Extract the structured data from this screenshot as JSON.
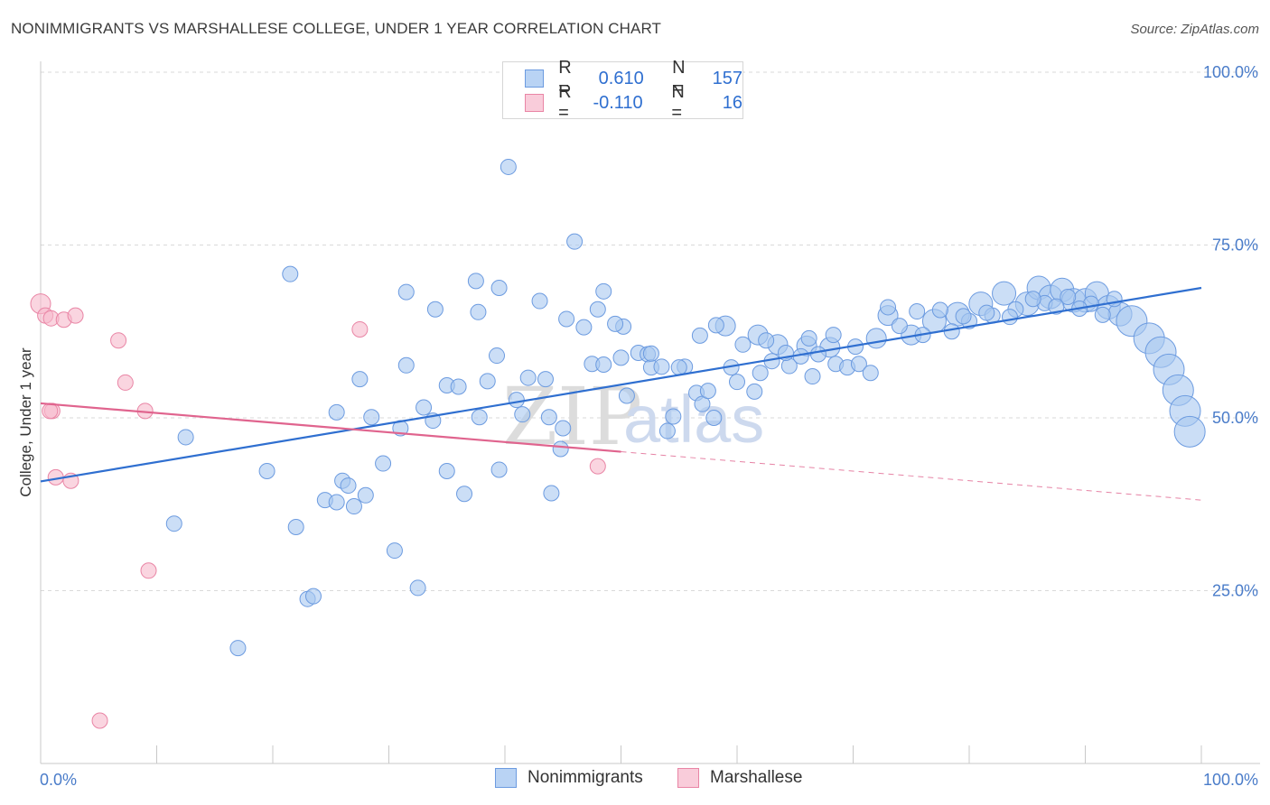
{
  "title": "NONIMMIGRANTS VS MARSHALLESE COLLEGE, UNDER 1 YEAR CORRELATION CHART",
  "source": "Source: ZipAtlas.com",
  "watermark": {
    "zip": "ZIP",
    "atlas": "atlas"
  },
  "colors": {
    "blue_fill": "#a9c8f0",
    "blue_stroke": "#6c9be0",
    "blue_line": "#2f6fd0",
    "pink_fill": "#f7b9cc",
    "pink_stroke": "#e985a5",
    "pink_line": "#e0648e",
    "grid": "#d9d9d9",
    "tick_text": "#4a7cc9"
  },
  "legend_top": {
    "rows": [
      {
        "r_label": "R =",
        "r_value": "0.610",
        "n_label": "N =",
        "n_value": "157"
      },
      {
        "r_label": "R =",
        "r_value": "-0.110",
        "n_label": "N =",
        "n_value": "16"
      }
    ]
  },
  "legend_bottom": {
    "items": [
      "Nonimmigrants",
      "Marshallese"
    ]
  },
  "chart_data": {
    "type": "scatter",
    "title": "NONIMMIGRANTS VS MARSHALLESE COLLEGE, UNDER 1 YEAR CORRELATION CHART",
    "xlabel": "",
    "ylabel": "College, Under 1 year",
    "xlim": [
      0,
      100
    ],
    "ylim": [
      0,
      100
    ],
    "x_tick_labels": [
      "0.0%",
      "100.0%"
    ],
    "y_tick_labels": [
      "25.0%",
      "50.0%",
      "75.0%",
      "100.0%"
    ],
    "y_ticks": [
      25,
      50,
      75,
      100
    ],
    "grid": true,
    "legend_placement": "top-center",
    "series": [
      {
        "name": "Nonimmigrants",
        "r": 0.61,
        "n": 157,
        "trend": {
          "x": [
            0,
            100
          ],
          "y": [
            40.8,
            68.8
          ]
        },
        "points": [
          [
            40.3,
            86.3,
            1
          ],
          [
            46.0,
            75.5,
            1
          ],
          [
            21.5,
            70.8,
            1
          ],
          [
            31.5,
            68.2,
            1
          ],
          [
            37.5,
            69.8,
            1
          ],
          [
            39.5,
            68.8,
            1
          ],
          [
            43.0,
            66.9,
            1
          ],
          [
            48.5,
            68.3,
            1
          ],
          [
            34.0,
            65.7,
            1
          ],
          [
            37.7,
            65.3,
            1
          ],
          [
            45.3,
            64.3,
            1
          ],
          [
            46.8,
            63.1,
            1
          ],
          [
            48.0,
            65.7,
            1
          ],
          [
            50.2,
            63.2,
            1
          ],
          [
            59.0,
            63.3,
            2
          ],
          [
            61.8,
            62.0,
            2
          ],
          [
            63.5,
            60.6,
            2
          ],
          [
            66.0,
            60.4,
            2
          ],
          [
            68.0,
            60.2,
            2
          ],
          [
            72.0,
            61.5,
            2
          ],
          [
            73.0,
            64.8,
            2
          ],
          [
            75.0,
            62.0,
            2
          ],
          [
            77.0,
            64.0,
            3
          ],
          [
            79.0,
            65.0,
            3
          ],
          [
            81.0,
            66.5,
            3
          ],
          [
            83.0,
            68.0,
            3
          ],
          [
            85.0,
            66.5,
            3
          ],
          [
            86.0,
            68.8,
            3
          ],
          [
            87.0,
            67.5,
            3
          ],
          [
            88.0,
            68.5,
            3
          ],
          [
            89.0,
            67.0,
            3
          ],
          [
            90.0,
            67.0,
            3
          ],
          [
            91.0,
            68.0,
            3
          ],
          [
            92.0,
            66.0,
            3
          ],
          [
            93.0,
            65.0,
            3
          ],
          [
            94.0,
            64.0,
            4
          ],
          [
            95.5,
            61.5,
            4
          ],
          [
            96.5,
            59.5,
            4
          ],
          [
            97.2,
            57.0,
            4
          ],
          [
            98.0,
            54.0,
            4
          ],
          [
            98.6,
            51.0,
            4
          ],
          [
            99.0,
            48.0,
            4
          ],
          [
            12.5,
            47.2,
            1
          ],
          [
            19.5,
            42.3,
            1
          ],
          [
            11.5,
            34.7,
            1
          ],
          [
            22.0,
            34.2,
            1
          ],
          [
            17.0,
            16.7,
            1
          ],
          [
            23.0,
            23.8,
            1
          ],
          [
            23.5,
            24.2,
            1
          ],
          [
            30.5,
            30.8,
            1
          ],
          [
            32.5,
            25.4,
            1
          ],
          [
            24.5,
            38.1,
            1
          ],
          [
            25.5,
            37.8,
            1
          ],
          [
            26.0,
            40.9,
            1
          ],
          [
            26.5,
            40.2,
            1
          ],
          [
            27.0,
            37.2,
            1
          ],
          [
            28.0,
            38.8,
            1
          ],
          [
            29.5,
            43.4,
            1
          ],
          [
            35.0,
            42.3,
            1
          ],
          [
            36.5,
            39.0,
            1
          ],
          [
            39.5,
            42.5,
            1
          ],
          [
            44.0,
            39.1,
            1
          ],
          [
            44.8,
            45.5,
            1
          ],
          [
            25.5,
            50.8,
            1
          ],
          [
            27.5,
            55.6,
            1
          ],
          [
            28.5,
            50.1,
            1
          ],
          [
            31.0,
            48.5,
            1
          ],
          [
            31.5,
            57.6,
            1
          ],
          [
            33.0,
            51.5,
            1
          ],
          [
            33.8,
            49.6,
            1
          ],
          [
            35.0,
            54.7,
            1
          ],
          [
            36.0,
            54.5,
            1
          ],
          [
            37.8,
            50.1,
            1
          ],
          [
            38.5,
            55.3,
            1
          ],
          [
            39.3,
            59.0,
            1
          ],
          [
            41.0,
            52.6,
            1
          ],
          [
            41.5,
            50.5,
            1
          ],
          [
            42.0,
            55.8,
            1
          ],
          [
            43.5,
            55.6,
            1
          ],
          [
            43.8,
            50.1,
            1
          ],
          [
            45.0,
            48.5,
            1
          ],
          [
            47.5,
            57.8,
            1
          ],
          [
            48.5,
            57.7,
            1
          ],
          [
            50.0,
            58.7,
            1
          ],
          [
            50.5,
            53.2,
            1
          ],
          [
            51.5,
            59.4,
            1
          ],
          [
            52.3,
            59.2,
            1
          ],
          [
            52.6,
            57.3,
            1
          ],
          [
            53.5,
            57.4,
            1
          ],
          [
            54.0,
            48.1,
            1
          ],
          [
            54.5,
            50.2,
            1
          ],
          [
            55.5,
            57.4,
            1
          ],
          [
            56.5,
            53.6,
            1
          ],
          [
            57.0,
            52.0,
            1
          ],
          [
            57.5,
            53.9,
            1
          ],
          [
            58.0,
            50.0,
            1
          ],
          [
            59.5,
            57.3,
            1
          ],
          [
            60.0,
            55.2,
            1
          ],
          [
            61.5,
            53.8,
            1
          ],
          [
            62.0,
            56.5,
            1
          ],
          [
            63.0,
            58.2,
            1
          ],
          [
            64.5,
            57.5,
            1
          ],
          [
            65.5,
            58.9,
            1
          ],
          [
            66.5,
            56.0,
            1
          ],
          [
            67.0,
            59.2,
            1
          ],
          [
            68.5,
            57.8,
            1
          ],
          [
            69.5,
            57.3,
            1
          ],
          [
            70.5,
            57.8,
            1
          ],
          [
            71.5,
            56.5,
            1
          ],
          [
            49.5,
            63.6,
            1
          ],
          [
            55.0,
            57.3,
            1
          ],
          [
            52.6,
            59.3,
            1
          ],
          [
            56.8,
            61.9,
            1
          ],
          [
            58.2,
            63.4,
            1
          ],
          [
            60.5,
            60.6,
            1
          ],
          [
            62.5,
            61.2,
            1
          ],
          [
            64.2,
            59.4,
            1
          ],
          [
            66.2,
            61.5,
            1
          ],
          [
            68.3,
            62.0,
            1
          ],
          [
            70.2,
            60.3,
            1
          ],
          [
            74.0,
            63.3,
            1
          ],
          [
            76.0,
            62.0,
            1
          ],
          [
            78.5,
            62.5,
            1
          ],
          [
            80.0,
            64.0,
            1
          ],
          [
            82.0,
            64.8,
            1
          ],
          [
            84.0,
            65.7,
            1
          ],
          [
            86.5,
            66.6,
            1
          ],
          [
            88.5,
            67.5,
            1
          ],
          [
            90.5,
            66.5,
            1
          ],
          [
            92.5,
            67.2,
            1
          ],
          [
            73.0,
            66.0,
            1
          ],
          [
            75.5,
            65.4,
            1
          ],
          [
            77.5,
            65.6,
            1
          ],
          [
            79.5,
            64.7,
            1
          ],
          [
            81.5,
            65.2,
            1
          ],
          [
            83.5,
            64.6,
            1
          ],
          [
            85.5,
            67.2,
            1
          ],
          [
            87.5,
            66.1,
            1
          ],
          [
            89.5,
            65.8,
            1
          ],
          [
            91.5,
            64.9,
            1
          ]
        ]
      },
      {
        "name": "Marshallese",
        "r": -0.11,
        "n": 16,
        "trend": {
          "x": [
            0,
            50
          ],
          "y": [
            52.1,
            45.1
          ]
        },
        "trend_dashed": {
          "x": [
            50,
            100
          ],
          "y": [
            45.1,
            38.1
          ]
        },
        "points": [
          [
            0.0,
            66.5,
            2
          ],
          [
            0.4,
            64.8,
            1
          ],
          [
            0.9,
            64.4,
            1
          ],
          [
            2.0,
            64.2,
            1
          ],
          [
            3.0,
            64.8,
            1
          ],
          [
            6.7,
            61.2,
            1
          ],
          [
            7.3,
            55.1,
            1
          ],
          [
            9.0,
            51.0,
            1
          ],
          [
            1.0,
            51.0,
            1
          ],
          [
            1.3,
            41.4,
            1
          ],
          [
            2.6,
            40.9,
            1
          ],
          [
            9.3,
            27.9,
            1
          ],
          [
            5.1,
            6.2,
            1
          ],
          [
            27.5,
            62.8,
            1
          ],
          [
            48.0,
            43.0,
            1
          ],
          [
            0.8,
            51.0,
            1
          ]
        ]
      }
    ]
  }
}
